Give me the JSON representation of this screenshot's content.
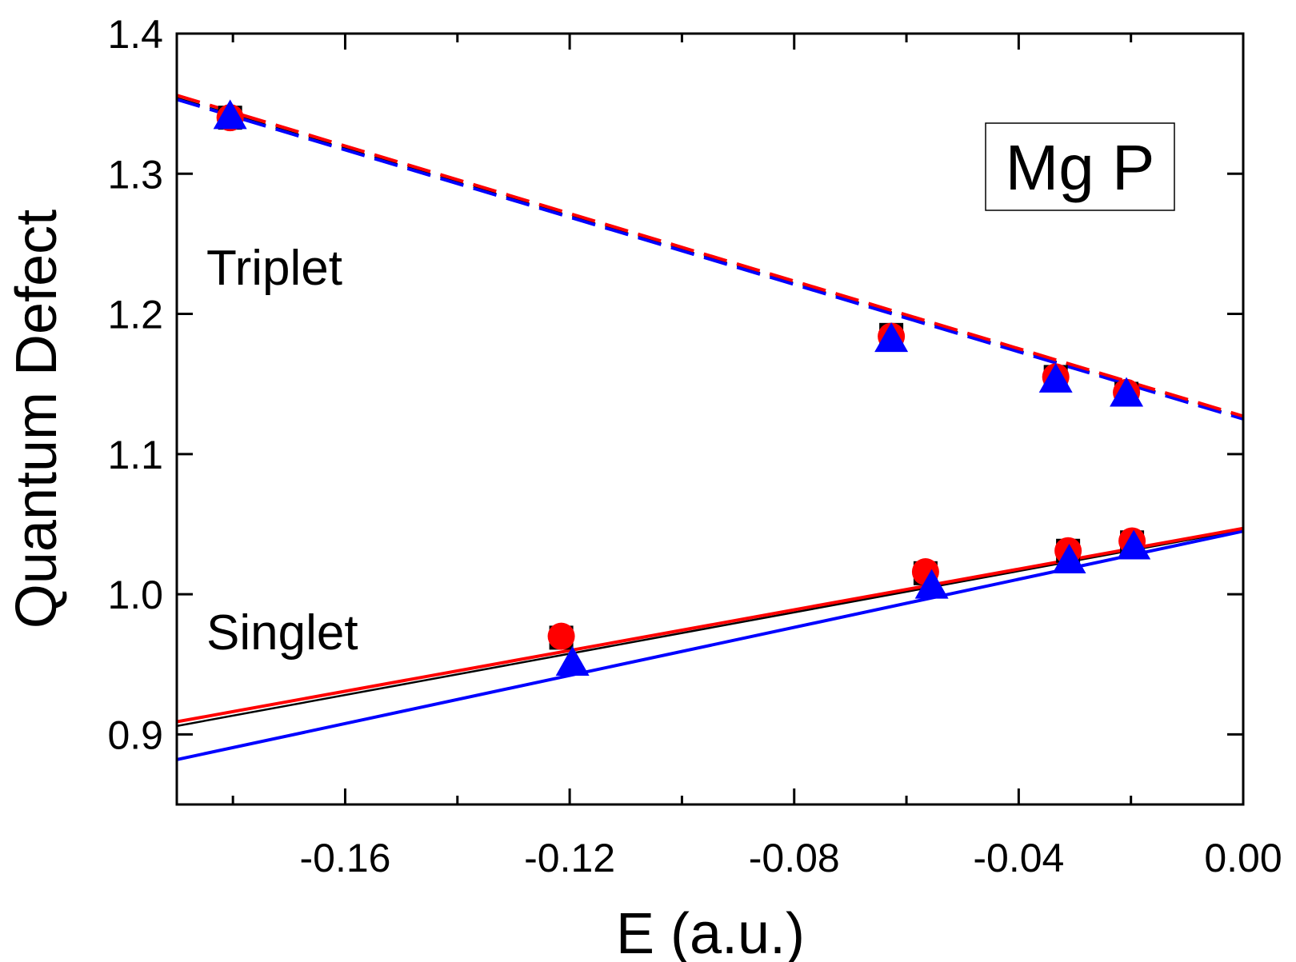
{
  "chart_data": {
    "type": "scatter",
    "title": "",
    "xlabel": "E (a.u.)",
    "ylabel": "Quantum Defect",
    "xlim": [
      -0.19,
      0.0
    ],
    "ylim": [
      0.85,
      1.4
    ],
    "x_ticks": [
      -0.16,
      -0.12,
      -0.08,
      -0.04,
      0.0
    ],
    "x_tick_labels": [
      "-0.16",
      "-0.12",
      "-0.08",
      "-0.04",
      "0.00"
    ],
    "y_ticks": [
      0.9,
      1.0,
      1.1,
      1.2,
      1.3,
      1.4
    ],
    "y_tick_labels": [
      "0.9",
      "1.0",
      "1.1",
      "1.2",
      "1.3",
      "1.4"
    ],
    "legend_box": "Mg P",
    "annotations": [
      "Triplet",
      "Singlet"
    ],
    "series": [
      {
        "name": "Triplet squares",
        "group": "triplet",
        "marker": "square",
        "color": "#000000",
        "x": [
          -0.1805,
          -0.0627,
          -0.0334,
          -0.0208
        ],
        "y": [
          1.34,
          1.185,
          1.155,
          1.143
        ]
      },
      {
        "name": "Triplet circles",
        "group": "triplet",
        "marker": "circle",
        "color": "#ff0000",
        "x": [
          -0.1805,
          -0.0627,
          -0.0334,
          -0.0208
        ],
        "y": [
          1.34,
          1.184,
          1.155,
          1.144
        ]
      },
      {
        "name": "Triplet triangles",
        "group": "triplet",
        "marker": "triangle",
        "color": "#0000ff",
        "x": [
          -0.1805,
          -0.0627,
          -0.0334,
          -0.0208
        ],
        "y": [
          1.341,
          1.182,
          1.153,
          1.143
        ]
      },
      {
        "name": "Singlet squares",
        "group": "singlet",
        "marker": "square",
        "color": "#000000",
        "x": [
          -0.1215,
          -0.0566,
          -0.0312,
          -0.0198
        ],
        "y": [
          0.969,
          1.015,
          1.031,
          1.037
        ]
      },
      {
        "name": "Singlet circles",
        "group": "singlet",
        "marker": "circle",
        "color": "#ff0000",
        "x": [
          -0.1215,
          -0.0566,
          -0.0312,
          -0.0198
        ],
        "y": [
          0.97,
          1.016,
          1.031,
          1.038
        ]
      },
      {
        "name": "Singlet triangles",
        "group": "singlet",
        "marker": "triangle",
        "color": "#0000ff",
        "x": [
          -0.1195,
          -0.0555,
          -0.031,
          -0.0195
        ],
        "y": [
          0.951,
          1.006,
          1.024,
          1.034
        ]
      }
    ],
    "fits": [
      {
        "name": "Triplet fit (black)",
        "style": "dashed",
        "color": "#000000",
        "x": [
          -0.19,
          0.0
        ],
        "y": [
          1.354,
          1.126
        ]
      },
      {
        "name": "Triplet fit (blue)",
        "style": "dashed",
        "color": "#0000ff",
        "x": [
          -0.19,
          0.0
        ],
        "y": [
          1.353,
          1.125
        ]
      },
      {
        "name": "Triplet fit (red)",
        "style": "dashed",
        "color": "#ff0000",
        "x": [
          -0.19,
          0.0
        ],
        "y": [
          1.356,
          1.127
        ]
      },
      {
        "name": "Singlet fit (black)",
        "style": "solid",
        "color": "#000000",
        "x": [
          -0.19,
          0.0
        ],
        "y": [
          0.906,
          1.046
        ]
      },
      {
        "name": "Singlet fit (blue)",
        "style": "solid",
        "color": "#0000ff",
        "x": [
          -0.19,
          0.0
        ],
        "y": [
          0.882,
          1.045
        ]
      },
      {
        "name": "Singlet fit (red)",
        "style": "solid",
        "color": "#ff0000",
        "x": [
          -0.19,
          0.0
        ],
        "y": [
          0.909,
          1.047
        ]
      }
    ]
  }
}
